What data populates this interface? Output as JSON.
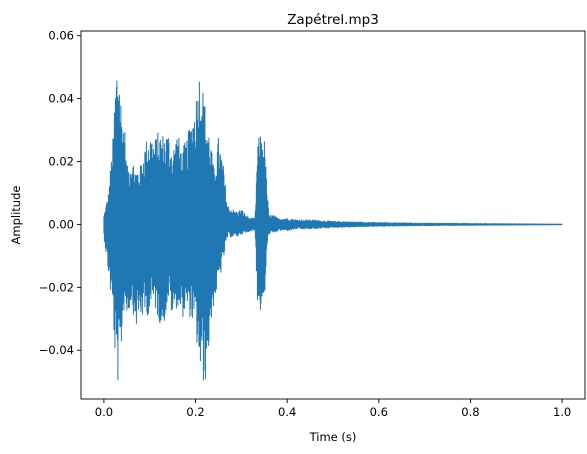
{
  "chart_data": {
    "type": "line",
    "title": "Zapétrel.mp3",
    "xlabel": "Time (s)",
    "ylabel": "Amplitude",
    "xlim": [
      -0.05,
      1.05
    ],
    "ylim": [
      -0.0555,
      0.0615
    ],
    "x_ticks": [
      0.0,
      0.2,
      0.4,
      0.6,
      0.8,
      1.0
    ],
    "x_tick_labels": [
      "0.0",
      "0.2",
      "0.4",
      "0.6",
      "0.8",
      "1.0"
    ],
    "y_ticks": [
      -0.04,
      -0.02,
      0.0,
      0.02,
      0.04,
      0.06
    ],
    "y_tick_labels": [
      "−0.04",
      "−0.02",
      "0.00",
      "0.02",
      "0.04",
      "0.06"
    ],
    "grid": false,
    "color": "#1f77b4",
    "series": [
      {
        "x": [
          0.0,
          0.01,
          0.02,
          0.025,
          0.03,
          0.035,
          0.04,
          0.045,
          0.05,
          0.06,
          0.07,
          0.08,
          0.09,
          0.1,
          0.11,
          0.12,
          0.13,
          0.14,
          0.15,
          0.16,
          0.17,
          0.18,
          0.19,
          0.2,
          0.21,
          0.22,
          0.23,
          0.24,
          0.25,
          0.26,
          0.27,
          0.28,
          0.29,
          0.3,
          0.31,
          0.32,
          0.33,
          0.335,
          0.34,
          0.345,
          0.35,
          0.355,
          0.36,
          0.37,
          0.38,
          0.39,
          0.4,
          0.42,
          0.45,
          0.5,
          0.55,
          0.6,
          0.7,
          0.8,
          0.9,
          1.0
        ],
        "env_max": [
          0.003,
          0.01,
          0.028,
          0.046,
          0.056,
          0.046,
          0.035,
          0.033,
          0.018,
          0.022,
          0.018,
          0.019,
          0.026,
          0.03,
          0.027,
          0.03,
          0.029,
          0.03,
          0.024,
          0.03,
          0.024,
          0.027,
          0.033,
          0.04,
          0.051,
          0.039,
          0.03,
          0.018,
          0.028,
          0.02,
          0.006,
          0.005,
          0.004,
          0.005,
          0.003,
          0.002,
          0.002,
          0.025,
          0.029,
          0.029,
          0.028,
          0.015,
          0.003,
          0.003,
          0.002,
          0.002,
          0.002,
          0.0015,
          0.0015,
          0.001,
          0.0008,
          0.0006,
          0.0004,
          0.0003,
          0.0002,
          0.0001
        ],
        "env_min": [
          -0.004,
          -0.016,
          -0.03,
          -0.045,
          -0.051,
          -0.048,
          -0.035,
          -0.025,
          -0.03,
          -0.025,
          -0.033,
          -0.03,
          -0.03,
          -0.028,
          -0.026,
          -0.031,
          -0.033,
          -0.024,
          -0.03,
          -0.026,
          -0.03,
          -0.028,
          -0.03,
          -0.035,
          -0.048,
          -0.052,
          -0.038,
          -0.025,
          -0.02,
          -0.012,
          -0.004,
          -0.004,
          -0.004,
          -0.003,
          -0.003,
          -0.002,
          -0.002,
          -0.025,
          -0.028,
          -0.028,
          -0.027,
          -0.01,
          -0.003,
          -0.003,
          -0.002,
          -0.002,
          -0.002,
          -0.0015,
          -0.0015,
          -0.001,
          -0.0008,
          -0.0006,
          -0.0004,
          -0.0003,
          -0.0002,
          -0.0001
        ]
      }
    ]
  }
}
